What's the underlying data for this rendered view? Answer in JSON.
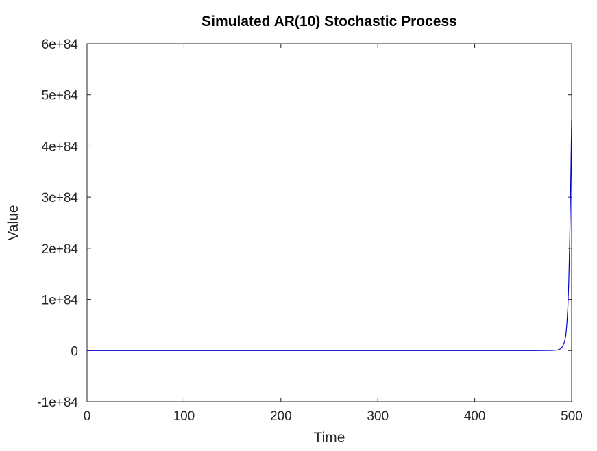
{
  "chart_data": {
    "type": "line",
    "title": "Simulated AR(10) Stochastic Process",
    "xlabel": "Time",
    "ylabel": "Value",
    "xlim": [
      0,
      500
    ],
    "ylim": [
      -1e+84,
      6e+84
    ],
    "xticks": [
      0,
      100,
      200,
      300,
      400,
      500
    ],
    "xtick_labels": [
      "0",
      "100",
      "200",
      "300",
      "400",
      "500"
    ],
    "yticks": [
      -1e+84,
      0,
      1e+84,
      2e+84,
      3e+84,
      4e+84,
      5e+84,
      6e+84
    ],
    "ytick_labels": [
      "-1e+84",
      "0",
      "1e+84",
      "2e+84",
      "3e+84",
      "4e+84",
      "5e+84",
      "6e+84"
    ],
    "grid": false,
    "legend": "none",
    "line_color": "#0000cc",
    "series": [
      {
        "x": [
          0,
          100,
          200,
          300,
          400,
          460,
          480,
          484,
          486,
          488,
          489,
          490,
          491,
          492,
          493,
          494,
          495,
          496,
          497,
          498,
          499,
          500
        ],
        "y": [
          0,
          0,
          0,
          0,
          0,
          0,
          3e+81,
          8e+81,
          1.5e+82,
          3e+82,
          4.5e+82,
          6.5e+82,
          9.5e+82,
          1.4e+83,
          2e+83,
          3e+83,
          5e+83,
          8e+83,
          1.3e+84,
          2.1e+84,
          3.2e+84,
          4.5e+84
        ]
      }
    ]
  }
}
